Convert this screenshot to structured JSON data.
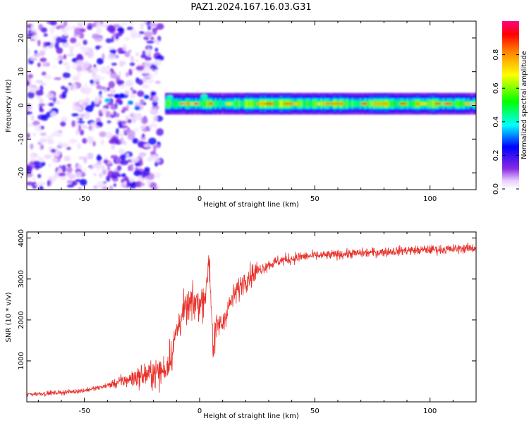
{
  "title": "PAZ1.2024.167.16.03.G31",
  "chart_data": [
    {
      "type": "heatmap",
      "xlabel": "Height of straight line (km)",
      "ylabel": "Frequency (Hz)",
      "xlim": [
        -75,
        120
      ],
      "ylim": [
        -25,
        25
      ],
      "xticks": [
        -50,
        0,
        50,
        100
      ],
      "yticks": [
        -20,
        -10,
        0,
        10,
        20
      ],
      "colorbar": {
        "label": "Normalized spectral amplitude",
        "range": [
          0,
          1
        ],
        "ticks": [
          "0.0",
          "0.2",
          "0.4",
          "0.6",
          "0.8"
        ]
      },
      "signal_band": {
        "x_start": -15,
        "x_end": 120,
        "center_frequency": 0.5,
        "half_width": 1.5,
        "amplitude": [
          [
            -15,
            0.55
          ],
          [
            -10,
            0.45
          ],
          [
            -5,
            0.5
          ],
          [
            0,
            0.45
          ],
          [
            3,
            0.55
          ],
          [
            6,
            0.5
          ],
          [
            10,
            0.45
          ],
          [
            20,
            0.55
          ],
          [
            30,
            0.6
          ],
          [
            40,
            0.55
          ],
          [
            50,
            0.5
          ],
          [
            60,
            0.55
          ],
          [
            70,
            0.5
          ],
          [
            80,
            0.55
          ],
          [
            90,
            0.5
          ],
          [
            100,
            0.55
          ],
          [
            110,
            0.5
          ],
          [
            120,
            0.45
          ]
        ]
      },
      "noise_region": {
        "x_start": -75,
        "x_end": -17,
        "typical_amplitude": 0.15
      }
    },
    {
      "type": "line",
      "xlabel": "Height of straight line (km)",
      "ylabel": "SNR (10 * v/v)",
      "xlim": [
        -75,
        120
      ],
      "ylim": [
        0,
        4150
      ],
      "xticks": [
        -50,
        0,
        50,
        100
      ],
      "yticks": [
        1000,
        2000,
        3000,
        4000
      ],
      "series": [
        {
          "color": "#e8302a",
          "x": [
            -75,
            -70,
            -65,
            -60,
            -55,
            -50,
            -45,
            -40,
            -35,
            -30,
            -25,
            -20,
            -17,
            -15,
            -12,
            -10,
            -8,
            -5,
            -3,
            -1,
            0,
            2,
            3,
            4,
            5,
            6,
            7,
            8,
            10,
            12,
            15,
            18,
            20,
            25,
            30,
            35,
            40,
            45,
            50,
            55,
            60,
            65,
            70,
            75,
            80,
            85,
            90,
            95,
            100,
            105,
            110,
            115,
            120
          ],
          "y": [
            180,
            200,
            210,
            230,
            250,
            280,
            330,
            400,
            480,
            560,
            640,
            700,
            720,
            800,
            1200,
            1700,
            2100,
            2300,
            2400,
            2450,
            2350,
            2600,
            2700,
            3600,
            2500,
            1200,
            1700,
            1900,
            1900,
            2250,
            2600,
            2850,
            3000,
            3200,
            3350,
            3450,
            3500,
            3550,
            3570,
            3580,
            3600,
            3620,
            3630,
            3650,
            3660,
            3680,
            3700,
            3700,
            3720,
            3720,
            3730,
            3750,
            3760
          ]
        }
      ]
    }
  ]
}
